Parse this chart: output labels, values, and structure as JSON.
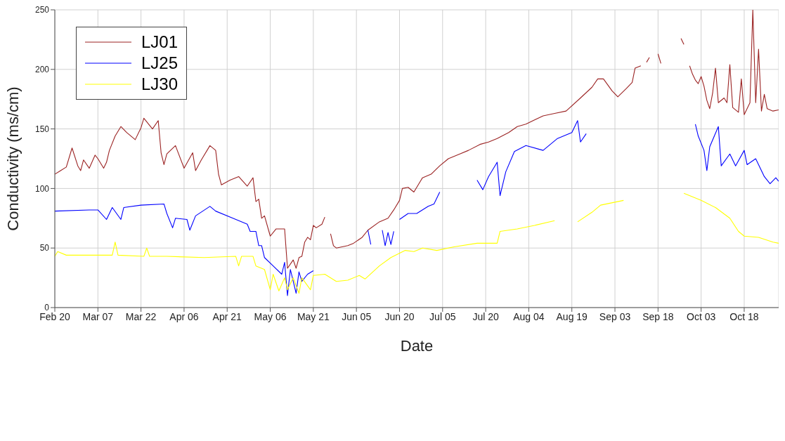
{
  "chart_data": {
    "type": "line",
    "xlabel": "Date",
    "ylabel": "Conductivity (ms/cm)",
    "xlim": [
      "--02-20",
      "--10-30"
    ],
    "ylim": [
      0,
      250
    ],
    "yticks": [
      0,
      50,
      100,
      150,
      200,
      250
    ],
    "xticks": [
      {
        "value": "--02-20",
        "label": "Feb 20"
      },
      {
        "value": "--03-07",
        "label": "Mar 07"
      },
      {
        "value": "--03-22",
        "label": "Mar 22"
      },
      {
        "value": "--04-06",
        "label": "Apr 06"
      },
      {
        "value": "--04-21",
        "label": "Apr 21"
      },
      {
        "value": "--05-06",
        "label": "May 06"
      },
      {
        "value": "--05-21",
        "label": "May 21"
      },
      {
        "value": "--06-05",
        "label": "Jun 05"
      },
      {
        "value": "--06-20",
        "label": "Jun 20"
      },
      {
        "value": "--07-05",
        "label": "Jul 05"
      },
      {
        "value": "--07-20",
        "label": "Jul 20"
      },
      {
        "value": "--08-04",
        "label": "Aug 04"
      },
      {
        "value": "--08-19",
        "label": "Aug 19"
      },
      {
        "value": "--09-03",
        "label": "Sep 03"
      },
      {
        "value": "--09-18",
        "label": "Sep 18"
      },
      {
        "value": "--10-03",
        "label": "Oct 03"
      },
      {
        "value": "--10-18",
        "label": "Oct 18"
      }
    ],
    "grid": true,
    "legend": "top left",
    "marker": "none",
    "line_style": "solid",
    "series": [
      {
        "name": "LJ01",
        "color": "#9b2323",
        "x": [
          "--02-20",
          "--02-22",
          "--02-24",
          "--02-26",
          "--02-28",
          "--03-01",
          "--03-02",
          "--03-04",
          "--03-06",
          "--03-07",
          "--03-09",
          "--03-10",
          "--03-11",
          "--03-13",
          "--03-15",
          "--03-17",
          "--03-20",
          "--03-22",
          "--03-23",
          "--03-26",
          "--03-28",
          "--03-29",
          "--03-30",
          "--03-31",
          "--04-03",
          "--04-06",
          "--04-09",
          "--04-10",
          "--04-12",
          "--04-15",
          "--04-17",
          "--04-18",
          "--04-19",
          "--04-22",
          "--04-25",
          "--04-28",
          "--04-30",
          "--05-01",
          "--05-02",
          "--05-03",
          "--05-04",
          "--05-06",
          "--05-08",
          "--05-11",
          "--05-12",
          "--05-14",
          "--05-15",
          "--05-16",
          "--05-17",
          "--05-18",
          "--05-19",
          "--05-20",
          "--05-21",
          "--05-22",
          "--05-24",
          "--05-25",
          "--05-26",
          "--05-27",
          "--05-28",
          "--05-29",
          "--06-02",
          "--06-04",
          "--06-07",
          "--06-09",
          "--06-13",
          "--06-16",
          "--06-18",
          "--06-20",
          "--06-21",
          "--06-23",
          "--06-25",
          "--06-28",
          "--07-01",
          "--07-04",
          "--07-07",
          "--07-11",
          "--07-14",
          "--07-18",
          "--07-21",
          "--07-24",
          "--07-28",
          "--07-31",
          "--08-03",
          "--08-09",
          "--08-13",
          "--08-17",
          "--08-22",
          "--08-26",
          "--08-28",
          "--08-30",
          "--09-02",
          "--09-04",
          "--09-07",
          "--09-09",
          "--09-10",
          "--09-12",
          "--09-13",
          "--09-14",
          "--09-15",
          "--09-16",
          "--09-18",
          "--09-19",
          "--09-20",
          "--09-26",
          "--09-27",
          "--09-28",
          "--09-29",
          "--09-30",
          "--10-01",
          "--10-02",
          "--10-03",
          "--10-04",
          "--10-05",
          "--10-06",
          "--10-07",
          "--10-08",
          "--10-09",
          "--10-11",
          "--10-12",
          "--10-13",
          "--10-14",
          "--10-16",
          "--10-17",
          "--10-18",
          "--10-20",
          "--10-21",
          "--10-22",
          "--10-23",
          "--10-24",
          "--10-25",
          "--10-26",
          "--10-28",
          "--10-30"
        ],
        "values": [
          112,
          115,
          118,
          134,
          119,
          115,
          124,
          117,
          128,
          125,
          117,
          122,
          132,
          144,
          152,
          147,
          141,
          151,
          159,
          150,
          157,
          130,
          120,
          129,
          136,
          117,
          130,
          115,
          124,
          136,
          132,
          112,
          103,
          107,
          110,
          102,
          109,
          89,
          91,
          75,
          77,
          60,
          66,
          66,
          33,
          40,
          33,
          42,
          43,
          55,
          59,
          57,
          69,
          67,
          70,
          76,
          null,
          62,
          52,
          50,
          52,
          54,
          59,
          65,
          72,
          75,
          82,
          90,
          100,
          101,
          97,
          109,
          112,
          119,
          125,
          129,
          132,
          137,
          139,
          142,
          147,
          152,
          154,
          161,
          163,
          165,
          176,
          185,
          192,
          192,
          182,
          177,
          184,
          189,
          201,
          203,
          null,
          206,
          210,
          null,
          213,
          205,
          null,
          226,
          221,
          null,
          203,
          196,
          191,
          188,
          194,
          186,
          174,
          167,
          180,
          201,
          172,
          176,
          172,
          204,
          168,
          164,
          192,
          162,
          172,
          250,
          172,
          217,
          165,
          179,
          167,
          165,
          166
        ]
      },
      {
        "name": "LJ25",
        "color": "#0000ff",
        "x": [
          "--02-20",
          "--03-04",
          "--03-07",
          "--03-10",
          "--03-12",
          "--03-15",
          "--03-16",
          "--03-22",
          "--03-30",
          "--03-31",
          "--04-02",
          "--04-03",
          "--04-07",
          "--04-08",
          "--04-10",
          "--04-15",
          "--04-17",
          "--04-23",
          "--04-28",
          "--04-29",
          "--05-01",
          "--05-02",
          "--05-03",
          "--05-04",
          "--05-07",
          "--05-10",
          "--05-11",
          "--05-12",
          "--05-13",
          "--05-15",
          "--05-16",
          "--05-17",
          "--05-19",
          "--05-21",
          "--05-22",
          "--06-09",
          "--06-10",
          "--06-11",
          "--06-14",
          "--06-15",
          "--06-16",
          "--06-17",
          "--06-18",
          "--06-19",
          "--06-20",
          "--06-23",
          "--06-26",
          "--06-30",
          "--07-02",
          "--07-04",
          "--07-05",
          "--07-17",
          "--07-19",
          "--07-21",
          "--07-24",
          "--07-25",
          "--07-27",
          "--07-30",
          "--08-03",
          "--08-09",
          "--08-14",
          "--08-19",
          "--08-21",
          "--08-22",
          "--08-24",
          "--08-25",
          "--10-01",
          "--10-02",
          "--10-04",
          "--10-05",
          "--10-06",
          "--10-09",
          "--10-10",
          "--10-13",
          "--10-15",
          "--10-18",
          "--10-19",
          "--10-22",
          "--10-25",
          "--10-27",
          "--10-29",
          "--10-30"
        ],
        "values": [
          81,
          82,
          82,
          74,
          84,
          74,
          84,
          86,
          87,
          79,
          67,
          75,
          74,
          65,
          77,
          85,
          81,
          75,
          70,
          64,
          64,
          52,
          52,
          42,
          35,
          28,
          38,
          10,
          32,
          12,
          30,
          22,
          28,
          31,
          null,
          65,
          53,
          null,
          65,
          52,
          63,
          53,
          64,
          null,
          74,
          79,
          79,
          85,
          87,
          97,
          null,
          107,
          99,
          110,
          122,
          94,
          114,
          131,
          136,
          132,
          142,
          147,
          157,
          139,
          146,
          null,
          154,
          144,
          132,
          115,
          135,
          152,
          119,
          129,
          119,
          132,
          120,
          125,
          110,
          104,
          109,
          106
        ]
      },
      {
        "name": "LJ30",
        "color": "#ffff00",
        "x": [
          "--02-20",
          "--02-21",
          "--02-24",
          "--03-12",
          "--03-13",
          "--03-14",
          "--03-23",
          "--03-24",
          "--03-25",
          "--03-31",
          "--04-13",
          "--04-24",
          "--04-25",
          "--04-26",
          "--04-30",
          "--05-01",
          "--05-04",
          "--05-06",
          "--05-07",
          "--05-09",
          "--05-11",
          "--05-12",
          "--05-14",
          "--05-16",
          "--05-17",
          "--05-20",
          "--05-21",
          "--05-25",
          "--05-29",
          "--06-02",
          "--06-06",
          "--06-08",
          "--06-13",
          "--06-17",
          "--06-22",
          "--06-25",
          "--06-28",
          "--07-03",
          "--07-09",
          "--07-17",
          "--07-24",
          "--07-25",
          "--07-31",
          "--08-06",
          "--08-13",
          "--08-14",
          "--08-21",
          "--08-26",
          "--08-29",
          "--09-06",
          "--09-07",
          "--09-27",
          "--09-30",
          "--10-03",
          "--10-08",
          "--10-13",
          "--10-16",
          "--10-18",
          "--10-23",
          "--10-28",
          "--10-30"
        ],
        "values": [
          43,
          47,
          44,
          44,
          55,
          44,
          43,
          50,
          43,
          43,
          42,
          43,
          35,
          43,
          43,
          35,
          32,
          15,
          28,
          14,
          25,
          15,
          25,
          12,
          25,
          15,
          27,
          28,
          22,
          23,
          27,
          24,
          35,
          42,
          48,
          47,
          50,
          48,
          51,
          54,
          54,
          64,
          66,
          69,
          73,
          null,
          72,
          80,
          86,
          90,
          null,
          96,
          93,
          90,
          84,
          75,
          64,
          60,
          59,
          55,
          54
        ]
      }
    ]
  }
}
